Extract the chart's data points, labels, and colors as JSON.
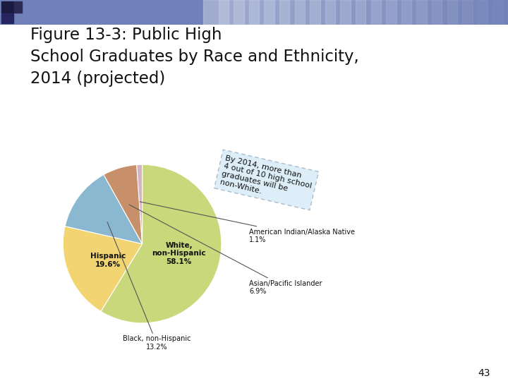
{
  "title": "Figure 13-3: Public High\nSchool Graduates by Race and Ethnicity,\n2014 (projected)",
  "page_number": "43",
  "slices": [
    {
      "label": "White,\nnon-Hispanic",
      "pct_label": "58.1%",
      "value": 58.1,
      "color": "#c8d87a",
      "label_inside": true
    },
    {
      "label": "Hispanic",
      "pct_label": "19.6%",
      "value": 19.6,
      "color": "#f2d472",
      "label_inside": true
    },
    {
      "label": "Black, non-Hispanic",
      "pct_label": "13.2%",
      "value": 13.2,
      "color": "#8ab8d0",
      "label_inside": false
    },
    {
      "label": "Asian/Pacific Islander",
      "pct_label": "6.9%",
      "value": 6.9,
      "color": "#c8906a",
      "label_inside": false
    },
    {
      "label": "American Indian/Alaska Native",
      "pct_label": "1.1%",
      "value": 1.1,
      "color": "#d4b4c0",
      "label_inside": false
    }
  ],
  "annotation_text": "By 2014, more than\n4 out of 10 high school\ngraduates will be\nnon-White.",
  "annotation_bg": "#ddeef8",
  "annotation_edge": "#aabbcc",
  "bg_color": "#ffffff"
}
